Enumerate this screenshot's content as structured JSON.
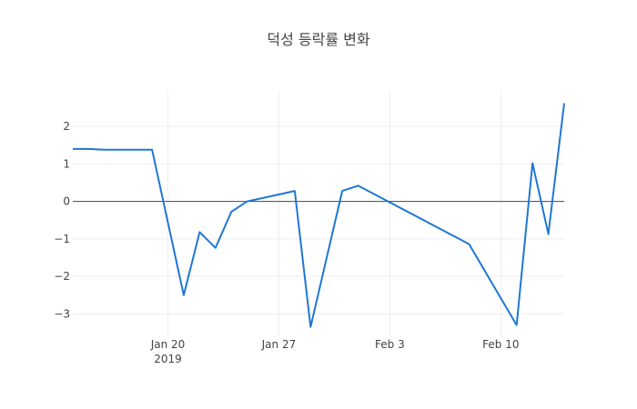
{
  "chart_data": {
    "type": "line",
    "title": "덕성 등락률 변화",
    "xlabel": "",
    "ylabel": "",
    "x": [
      "2019-01-14",
      "2019-01-15",
      "2019-01-16",
      "2019-01-17",
      "2019-01-18",
      "2019-01-19",
      "2019-01-21",
      "2019-01-22",
      "2019-01-23",
      "2019-01-24",
      "2019-01-25",
      "2019-01-28",
      "2019-01-29",
      "2019-01-31",
      "2019-02-01",
      "2019-02-08",
      "2019-02-11",
      "2019-02-12",
      "2019-02-13",
      "2019-02-14"
    ],
    "values": [
      1.4,
      1.4,
      1.38,
      1.38,
      1.38,
      1.38,
      -2.5,
      -0.82,
      -1.24,
      -0.28,
      0.0,
      0.28,
      -3.35,
      0.28,
      0.42,
      -1.14,
      -3.3,
      1.02,
      -0.87,
      2.62
    ],
    "xlim": [
      "2019-01-14",
      "2019-02-14"
    ],
    "ylim": [
      -3.6,
      2.95
    ],
    "x_ticks": [
      {
        "date": "2019-01-20",
        "label": "Jan 20",
        "sublabel": "2019"
      },
      {
        "date": "2019-01-27",
        "label": "Jan 27",
        "sublabel": ""
      },
      {
        "date": "2019-02-03",
        "label": "Feb 3",
        "sublabel": ""
      },
      {
        "date": "2019-02-10",
        "label": "Feb 10",
        "sublabel": ""
      }
    ],
    "y_ticks": [
      {
        "value": 2,
        "label": "2"
      },
      {
        "value": 1,
        "label": "1"
      },
      {
        "value": 0,
        "label": "0"
      },
      {
        "value": -1,
        "label": "−1"
      },
      {
        "value": -2,
        "label": "−2"
      },
      {
        "value": -3,
        "label": "−3"
      }
    ],
    "grid": true,
    "line_color": "#1f77d4"
  }
}
